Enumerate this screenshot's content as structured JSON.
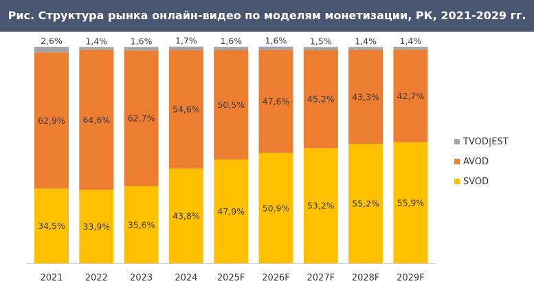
{
  "colors": {
    "title_bg": "#4a5570",
    "svod": "#ffc000",
    "avod": "#ed7d31",
    "tvod": "#a5a5a5"
  },
  "chart_data": {
    "type": "bar",
    "stacked": true,
    "title": "Рис. Структура рынка онлайн-видео по моделям монетизации, РК, 2021-2029 гг.",
    "xlabel": "",
    "ylabel": "",
    "ylim": [
      0,
      100
    ],
    "grid": false,
    "legend_position": "right",
    "categories": [
      "2021",
      "2022",
      "2023",
      "2024",
      "2025F",
      "2026F",
      "2027F",
      "2028F",
      "2029F"
    ],
    "series": [
      {
        "name": "SVOD",
        "color": "#ffc000",
        "values": [
          34.5,
          33.9,
          35.6,
          43.8,
          47.9,
          50.9,
          53.2,
          55.2,
          55.9
        ],
        "labels": [
          "34,5%",
          "33,9%",
          "35,6%",
          "43,8%",
          "47,9%",
          "50,9%",
          "53,2%",
          "55,2%",
          "55,9%"
        ]
      },
      {
        "name": "AVOD",
        "color": "#ed7d31",
        "values": [
          62.9,
          64.6,
          62.7,
          54.6,
          50.5,
          47.6,
          45.2,
          43.3,
          42.7
        ],
        "labels": [
          "62,9%",
          "64,6%",
          "62,7%",
          "54,6%",
          "50,5%",
          "47,6%",
          "45,2%",
          "43,3%",
          "42,7%"
        ]
      },
      {
        "name": "TVOD|EST",
        "color": "#a5a5a5",
        "values": [
          2.6,
          1.4,
          1.6,
          1.7,
          1.6,
          1.6,
          1.5,
          1.4,
          1.4
        ],
        "labels": [
          "2,6%",
          "1,4%",
          "1,6%",
          "1,7%",
          "1,6%",
          "1,6%",
          "1,5%",
          "1,4%",
          "1,4%"
        ]
      }
    ],
    "legend_order": [
      "TVOD|EST",
      "AVOD",
      "SVOD"
    ]
  }
}
